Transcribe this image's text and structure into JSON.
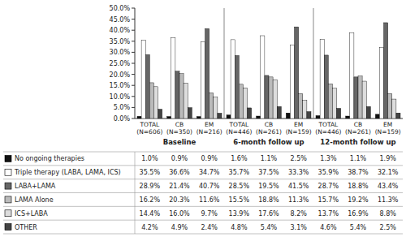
{
  "chart_data": {
    "type": "bar",
    "categories": [
      "TOTAL\n(N=606)",
      "CB\n(N=350)",
      "EM\n(N=216)",
      "TOTAL\n(N=446)",
      "CB\n(N=261)",
      "EM\n(N=159)",
      "TOTAL\n(N=446)",
      "CB\n(N=261)",
      "EM\n(N=159)"
    ],
    "annotations": [
      "Baseline",
      "6-month follow up",
      "12-month follow up"
    ],
    "series": [
      {
        "name": "No ongoing therapies",
        "color": "#111111",
        "values": [
          1.0,
          0.9,
          0.9,
          1.6,
          1.1,
          2.5,
          1.3,
          1.1,
          1.9
        ],
        "value_labels": [
          "1.0%",
          "0.9%",
          "0.9%",
          "1.6%",
          "1.1%",
          "2.5%",
          "1.3%",
          "1.1%",
          "1.9%"
        ]
      },
      {
        "name": "Triple therapy (LABA, LAMA, ICS)",
        "color": "#ffffff",
        "values": [
          35.5,
          36.6,
          34.7,
          35.7,
          37.5,
          33.3,
          35.9,
          38.7,
          32.1
        ],
        "value_labels": [
          "35.5%",
          "36.6%",
          "34.7%",
          "35.7%",
          "37.5%",
          "33.3%",
          "35.9%",
          "38.7%",
          "32.1%"
        ]
      },
      {
        "name": "LABA+LAMA",
        "color": "#666666",
        "values": [
          28.9,
          21.4,
          40.7,
          28.5,
          19.5,
          41.5,
          28.7,
          18.8,
          43.4
        ],
        "value_labels": [
          "28.9%",
          "21.4%",
          "40.7%",
          "28.5%",
          "19.5%",
          "41.5%",
          "28.7%",
          "18.8%",
          "43.4%"
        ]
      },
      {
        "name": "LAMA Alone",
        "color": "#bbbbbb",
        "values": [
          16.2,
          20.3,
          11.6,
          15.5,
          18.8,
          11.3,
          15.7,
          19.2,
          11.3
        ],
        "value_labels": [
          "16.2%",
          "20.3%",
          "11.6%",
          "15.5%",
          "18.8%",
          "11.3%",
          "15.7%",
          "19.2%",
          "11.3%"
        ]
      },
      {
        "name": "ICS+LABA",
        "color": "#dddddd",
        "values": [
          14.4,
          16.0,
          9.7,
          13.9,
          17.6,
          8.2,
          13.7,
          16.9,
          8.8
        ],
        "value_labels": [
          "14.4%",
          "16.0%",
          "9.7%",
          "13.9%",
          "17.6%",
          "8.2%",
          "13.7%",
          "16.9%",
          "8.8%"
        ]
      },
      {
        "name": "OTHER",
        "color": "#444444",
        "values": [
          4.2,
          4.9,
          2.4,
          4.8,
          5.4,
          3.1,
          4.6,
          5.4,
          2.5
        ],
        "value_labels": [
          "4.2%",
          "4.9%",
          "2.4%",
          "4.8%",
          "5.4%",
          "3.1%",
          "4.6%",
          "5.4%",
          "2.5%"
        ]
      }
    ],
    "ylim": [
      0,
      50
    ],
    "yticks": [
      {
        "value": 0,
        "label": "0.0%"
      },
      {
        "value": 5,
        "label": "5.0%"
      },
      {
        "value": 10,
        "label": "10.0%"
      },
      {
        "value": 15,
        "label": "15.0%"
      },
      {
        "value": 20,
        "label": "20.0%"
      },
      {
        "value": 25,
        "label": "25.0%"
      },
      {
        "value": 30,
        "label": "30.0%"
      },
      {
        "value": 35,
        "label": "35.0%"
      },
      {
        "value": 40,
        "label": "40.0%"
      },
      {
        "value": 45,
        "label": "45.0%"
      },
      {
        "value": 50,
        "label": "50.0%"
      }
    ],
    "grid": false
  }
}
